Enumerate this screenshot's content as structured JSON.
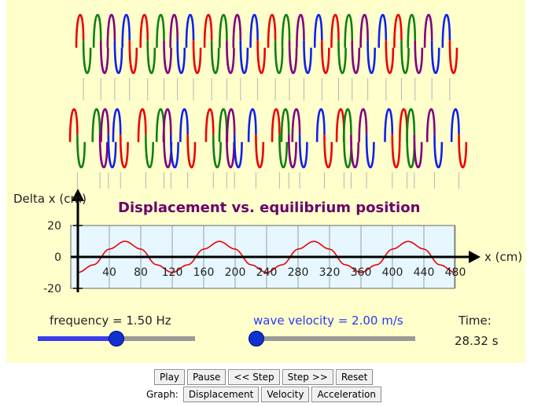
{
  "graph": {
    "title": "Displacement vs. equilibrium position",
    "ylabel": "Delta x (cm)",
    "xlabel": "x (cm)",
    "yticks": [
      "20",
      "0",
      "-20"
    ],
    "xticks": [
      "40",
      "80",
      "120",
      "160",
      "200",
      "240",
      "280",
      "320",
      "360",
      "400",
      "440",
      "480"
    ]
  },
  "chart_data": {
    "type": "line",
    "title": "Displacement vs. equilibrium position",
    "xlabel": "x (cm)",
    "ylabel": "Delta x (cm)",
    "xlim": [
      0,
      480
    ],
    "ylim": [
      -20,
      20
    ],
    "grid": true,
    "series": [
      {
        "color": "#ee0000",
        "x": [
          0,
          20,
          40,
          60,
          80,
          100,
          120,
          140,
          160,
          180,
          200,
          220,
          240,
          260,
          280,
          300,
          320,
          340,
          360,
          380,
          400,
          420,
          440,
          460,
          480
        ],
        "values": [
          -9.9,
          -5.0,
          5.0,
          10.0,
          5.0,
          -5.0,
          -9.9,
          -5.0,
          5.0,
          9.9,
          5.0,
          -5.0,
          -9.9,
          -5.0,
          5.0,
          9.9,
          5.0,
          -5.0,
          -9.9,
          -5.0,
          5.0,
          9.9,
          5.0,
          -5.0,
          -9.9
        ]
      }
    ]
  },
  "controls": {
    "frequency_label": "frequency = 1.50 Hz",
    "frequency_value": 0.5,
    "velocity_label": "wave velocity = 2.00 m/s",
    "velocity_value": 0.0,
    "time_label": "Time:",
    "time_value": "28.32 s",
    "play": "Play",
    "pause": "Pause",
    "step_back": "<< Step",
    "step_fwd": "Step >>",
    "reset": "Reset",
    "graph_label": "Graph:",
    "displacement": "Displacement",
    "velocity": "Velocity",
    "acceleration": "Acceleration"
  },
  "colors": {
    "red": "#ee0000",
    "green": "#108010",
    "purple": "#800080",
    "blue": "#1020ee",
    "accent": "#3a3af0",
    "title": "#6a006a"
  }
}
